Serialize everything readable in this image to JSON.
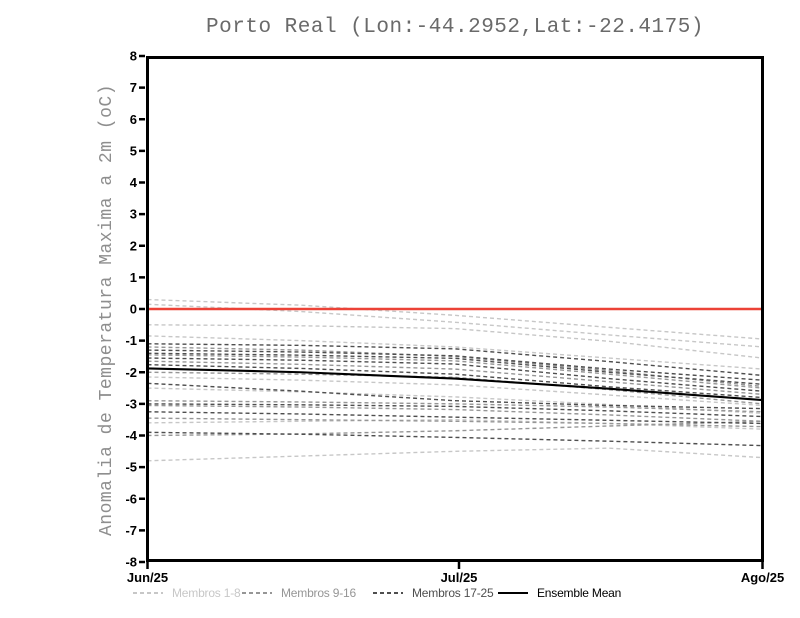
{
  "chart_data": {
    "type": "line",
    "title": "Porto Real (Lon:-44.2952,Lat:-22.4175)",
    "ylabel": "Anomalia de Temperatura Maxima a 2m (oC)",
    "xlabel": "",
    "ylim": [
      -8,
      8
    ],
    "grid": false,
    "legend_position": "bottom",
    "yticks": [
      8,
      7,
      6,
      5,
      4,
      3,
      2,
      1,
      0,
      -1,
      -2,
      -3,
      -4,
      -5,
      -6,
      -7,
      -8
    ],
    "xticks": [
      {
        "label": "Jun/25",
        "t": 0
      },
      {
        "label": "Jul/25",
        "t": 0.5065
      },
      {
        "label": "Ago/25",
        "t": 1
      }
    ],
    "x_normalized": [
      0,
      0.25,
      0.5,
      0.75,
      1
    ],
    "zero_line": {
      "value": 0,
      "color": "#ec4237"
    },
    "axis_color": "#000000",
    "groups": [
      {
        "name": "Membros 1-8",
        "color": "#c7c7c7",
        "style": "dashed"
      },
      {
        "name": "Membros 9-16",
        "color": "#969696",
        "style": "dashed"
      },
      {
        "name": "Membros 17-25",
        "color": "#4e4e4e",
        "style": "dashed"
      },
      {
        "name": "Ensemble Mean",
        "color": "#000000",
        "style": "solid"
      }
    ],
    "members": [
      {
        "group": 0,
        "values": [
          0.3,
          0.12,
          -0.2,
          -0.58,
          -0.95
        ]
      },
      {
        "group": 0,
        "values": [
          0.15,
          -0.08,
          -0.42,
          -0.82,
          -1.2
        ]
      },
      {
        "group": 0,
        "values": [
          -0.5,
          -0.53,
          -0.62,
          -1.02,
          -1.55
        ]
      },
      {
        "group": 0,
        "values": [
          -0.85,
          -1.0,
          -1.2,
          -1.55,
          -1.9
        ]
      },
      {
        "group": 0,
        "values": [
          -2.15,
          -2.25,
          -2.4,
          -2.72,
          -3.05
        ]
      },
      {
        "group": 0,
        "values": [
          -3.6,
          -3.55,
          -3.5,
          -3.62,
          -3.8
        ]
      },
      {
        "group": 0,
        "values": [
          -4.8,
          -4.65,
          -4.5,
          -4.4,
          -4.7
        ]
      },
      {
        "group": 0,
        "values": [
          -2.5,
          -2.62,
          -2.78,
          -3.02,
          -3.3
        ]
      },
      {
        "group": 1,
        "values": [
          -1.2,
          -1.3,
          -1.5,
          -1.95,
          -2.45
        ]
      },
      {
        "group": 1,
        "values": [
          -1.45,
          -1.52,
          -1.64,
          -2.06,
          -2.5
        ]
      },
      {
        "group": 1,
        "values": [
          -1.65,
          -1.75,
          -1.9,
          -2.3,
          -2.7
        ]
      },
      {
        "group": 1,
        "values": [
          -2.0,
          -2.06,
          -2.16,
          -2.55,
          -3.0
        ]
      },
      {
        "group": 1,
        "values": [
          -2.9,
          -2.94,
          -3.0,
          -3.1,
          -3.25
        ]
      },
      {
        "group": 1,
        "values": [
          -3.05,
          -3.1,
          -3.18,
          -3.35,
          -3.55
        ]
      },
      {
        "group": 1,
        "values": [
          -3.45,
          -3.5,
          -3.55,
          -3.62,
          -3.72
        ]
      },
      {
        "group": 1,
        "values": [
          -4.0,
          -3.95,
          -3.85,
          -3.7,
          -3.55
        ]
      },
      {
        "group": 2,
        "values": [
          -1.1,
          -1.15,
          -1.26,
          -1.66,
          -2.1
        ]
      },
      {
        "group": 2,
        "values": [
          -1.3,
          -1.36,
          -1.48,
          -1.9,
          -2.25
        ]
      },
      {
        "group": 2,
        "values": [
          -1.4,
          -1.46,
          -1.56,
          -2.0,
          -2.38
        ]
      },
      {
        "group": 2,
        "values": [
          -1.55,
          -1.62,
          -1.74,
          -2.2,
          -2.6
        ]
      },
      {
        "group": 2,
        "values": [
          -1.76,
          -1.88,
          -2.06,
          -2.46,
          -2.8
        ]
      },
      {
        "group": 2,
        "values": [
          -2.35,
          -2.6,
          -2.9,
          -3.05,
          -3.15
        ]
      },
      {
        "group": 2,
        "values": [
          -3.0,
          -3.03,
          -3.08,
          -3.22,
          -3.4
        ]
      },
      {
        "group": 2,
        "values": [
          -3.25,
          -3.32,
          -3.42,
          -3.52,
          -3.62
        ]
      },
      {
        "group": 2,
        "values": [
          -3.9,
          -3.96,
          -4.06,
          -4.18,
          -4.32
        ]
      }
    ],
    "ensemble_mean": {
      "name": "Ensemble Mean",
      "color": "#000000",
      "values": [
        -1.88,
        -2.0,
        -2.2,
        -2.52,
        -2.88
      ]
    }
  }
}
